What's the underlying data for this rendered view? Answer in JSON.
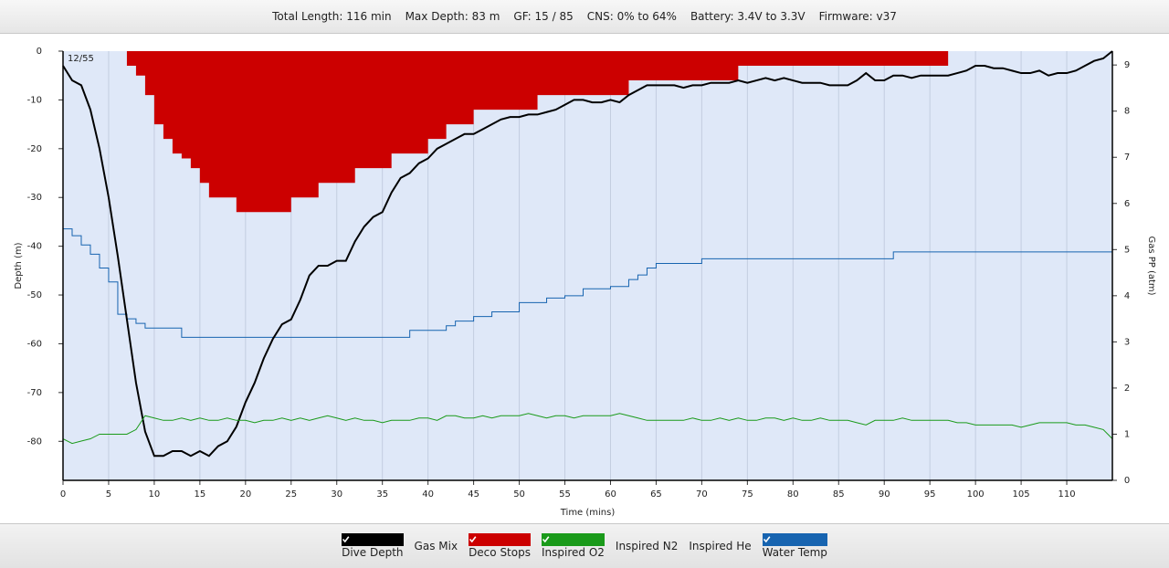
{
  "header": {
    "items": [
      "Total Length: 116 min",
      "Max Depth: 83 m",
      "GF: 15 / 85",
      "CNS: 0% to 64%",
      "Battery: 3.4V to 3.3V",
      "Firmware: v37"
    ]
  },
  "chart_data": {
    "type": "line",
    "annotation": "12/55",
    "x_label": "Time (mins)",
    "y_label": "Depth (m)",
    "y2_label": "Gas PP (atm)",
    "xlim": [
      0,
      115
    ],
    "ylim": [
      -88,
      0
    ],
    "y2lim": [
      0,
      9.3
    ],
    "xticks": [
      0,
      5,
      10,
      15,
      20,
      25,
      30,
      35,
      40,
      45,
      50,
      55,
      60,
      65,
      70,
      75,
      80,
      85,
      90,
      95,
      100,
      105,
      110
    ],
    "yticks": [
      0,
      -10,
      -20,
      -30,
      -40,
      -50,
      -60,
      -70,
      -80
    ],
    "y2ticks": [
      0,
      1,
      2,
      3,
      4,
      5,
      6,
      7,
      8,
      9
    ],
    "grid": "x",
    "x": [
      0,
      1,
      2,
      3,
      4,
      5,
      6,
      7,
      8,
      9,
      10,
      11,
      12,
      13,
      14,
      15,
      16,
      17,
      18,
      19,
      20,
      21,
      22,
      23,
      24,
      25,
      26,
      27,
      28,
      29,
      30,
      31,
      32,
      33,
      34,
      35,
      36,
      37,
      38,
      39,
      40,
      41,
      42,
      43,
      44,
      45,
      46,
      47,
      48,
      49,
      50,
      51,
      52,
      53,
      54,
      55,
      56,
      57,
      58,
      59,
      60,
      61,
      62,
      63,
      64,
      65,
      66,
      67,
      68,
      69,
      70,
      71,
      72,
      73,
      74,
      75,
      76,
      77,
      78,
      79,
      80,
      81,
      82,
      83,
      84,
      85,
      86,
      87,
      88,
      89,
      90,
      91,
      92,
      93,
      94,
      95,
      96,
      97,
      98,
      99,
      100,
      101,
      102,
      103,
      104,
      105,
      106,
      107,
      108,
      109,
      110,
      111,
      112,
      113,
      114,
      115
    ],
    "series": [
      {
        "name": "Dive Depth",
        "color": "#000000",
        "checked": true,
        "kind": "line",
        "axis": "y",
        "values": [
          -3,
          -6,
          -7,
          -12,
          -20,
          -30,
          -42,
          -55,
          -68,
          -78,
          -83,
          -83,
          -82,
          -82,
          -83,
          -82,
          -83,
          -81,
          -80,
          -77,
          -72,
          -68,
          -63,
          -59,
          -56,
          -55,
          -51,
          -46,
          -44,
          -44,
          -43,
          -43,
          -39,
          -36,
          -34,
          -33,
          -29,
          -26,
          -25,
          -23,
          -22,
          -20,
          -19,
          -18,
          -17,
          -17,
          -16,
          -15,
          -14,
          -13.5,
          -13.5,
          -13,
          -13,
          -12.5,
          -12,
          -11,
          -10,
          -10,
          -10.5,
          -10.5,
          -10,
          -10.5,
          -9,
          -8,
          -7,
          -7,
          -7,
          -7,
          -7.5,
          -7,
          -7,
          -6.5,
          -6.5,
          -6.5,
          -6,
          -6.5,
          -6,
          -5.5,
          -6,
          -5.5,
          -6,
          -6.5,
          -6.5,
          -6.5,
          -7,
          -7,
          -7,
          -6,
          -4.5,
          -6,
          -6,
          -5,
          -5,
          -5.5,
          -5,
          -5,
          -5,
          -5,
          -4.5,
          -4,
          -3,
          -3,
          -3.5,
          -3.5,
          -4,
          -4.5,
          -4.5,
          -4,
          -5,
          -4.5,
          -4.5,
          -4,
          -3,
          -2,
          -1.5,
          0
        ]
      },
      {
        "name": "Gas Mix",
        "color": "#9cc8ee",
        "checked": false
      },
      {
        "name": "Deco Stops",
        "color": "#cc0000",
        "checked": true,
        "kind": "ceiling",
        "axis": "y",
        "values": [
          null,
          null,
          null,
          null,
          null,
          null,
          null,
          -3,
          -5,
          -9,
          -15,
          -18,
          -21,
          -22,
          -24,
          -27,
          -30,
          -30,
          -30,
          -33,
          -33,
          -33,
          -33,
          -33,
          -33,
          -30,
          -30,
          -30,
          -27,
          -27,
          -27,
          -27,
          -24,
          -24,
          -24,
          -24,
          -21,
          -21,
          -21,
          -21,
          -18,
          -18,
          -15,
          -15,
          -15,
          -12,
          -12,
          -12,
          -12,
          -12,
          -12,
          -12,
          -9,
          -9,
          -9,
          -9,
          -9,
          -9,
          -9,
          -9,
          -9,
          -9,
          -6,
          -6,
          -6,
          -6,
          -6,
          -6,
          -6,
          -6,
          -6,
          -6,
          -6,
          -6,
          -3,
          -3,
          -3,
          -3,
          -3,
          -3,
          -3,
          -3,
          -3,
          -3,
          -3,
          -3,
          -3,
          -3,
          -3,
          -3,
          -3,
          -3,
          -3,
          -3,
          -3,
          -3,
          -3,
          null,
          null,
          null,
          null,
          null,
          null,
          null,
          null,
          null,
          null,
          null,
          null,
          null,
          null,
          null,
          null,
          null,
          null,
          null
        ]
      },
      {
        "name": "Inspired O2",
        "color": "#1a9a1a",
        "checked": true,
        "kind": "line",
        "axis": "y2",
        "values": [
          0.9,
          0.8,
          0.85,
          0.9,
          1.0,
          1.0,
          1.0,
          1.0,
          1.1,
          1.4,
          1.35,
          1.3,
          1.3,
          1.35,
          1.3,
          1.35,
          1.3,
          1.3,
          1.35,
          1.3,
          1.3,
          1.25,
          1.3,
          1.3,
          1.35,
          1.3,
          1.35,
          1.3,
          1.35,
          1.4,
          1.35,
          1.3,
          1.35,
          1.3,
          1.3,
          1.25,
          1.3,
          1.3,
          1.3,
          1.35,
          1.35,
          1.3,
          1.4,
          1.4,
          1.35,
          1.35,
          1.4,
          1.35,
          1.4,
          1.4,
          1.4,
          1.45,
          1.4,
          1.35,
          1.4,
          1.4,
          1.35,
          1.4,
          1.4,
          1.4,
          1.4,
          1.45,
          1.4,
          1.35,
          1.3,
          1.3,
          1.3,
          1.3,
          1.3,
          1.35,
          1.3,
          1.3,
          1.35,
          1.3,
          1.35,
          1.3,
          1.3,
          1.35,
          1.35,
          1.3,
          1.35,
          1.3,
          1.3,
          1.35,
          1.3,
          1.3,
          1.3,
          1.25,
          1.2,
          1.3,
          1.3,
          1.3,
          1.35,
          1.3,
          1.3,
          1.3,
          1.3,
          1.3,
          1.25,
          1.25,
          1.2,
          1.2,
          1.2,
          1.2,
          1.2,
          1.15,
          1.2,
          1.25,
          1.25,
          1.25,
          1.25,
          1.2,
          1.2,
          1.15,
          1.1,
          0.9
        ]
      },
      {
        "name": "Inspired N2",
        "color": "#9b7418",
        "checked": false
      },
      {
        "name": "Inspired He",
        "color": "#8a8a8a",
        "checked": false
      },
      {
        "name": "Water Temp",
        "color": "#1764b0",
        "checked": true,
        "kind": "step",
        "axis": "y2",
        "values": [
          5.45,
          5.3,
          5.1,
          4.9,
          4.6,
          4.3,
          3.6,
          3.5,
          3.4,
          3.3,
          3.3,
          3.3,
          3.3,
          3.1,
          3.1,
          3.1,
          3.1,
          3.1,
          3.1,
          3.1,
          3.1,
          3.1,
          3.1,
          3.1,
          3.1,
          3.1,
          3.1,
          3.1,
          3.1,
          3.1,
          3.1,
          3.1,
          3.1,
          3.1,
          3.1,
          3.1,
          3.1,
          3.1,
          3.25,
          3.25,
          3.25,
          3.25,
          3.35,
          3.45,
          3.45,
          3.55,
          3.55,
          3.65,
          3.65,
          3.65,
          3.85,
          3.85,
          3.85,
          3.95,
          3.95,
          4.0,
          4.0,
          4.15,
          4.15,
          4.15,
          4.2,
          4.2,
          4.35,
          4.45,
          4.6,
          4.7,
          4.7,
          4.7,
          4.7,
          4.7,
          4.8,
          4.8,
          4.8,
          4.8,
          4.8,
          4.8,
          4.8,
          4.8,
          4.8,
          4.8,
          4.8,
          4.8,
          4.8,
          4.8,
          4.8,
          4.8,
          4.8,
          4.8,
          4.8,
          4.8,
          4.8,
          4.95,
          4.95,
          4.95,
          4.95,
          4.95,
          4.95,
          4.95,
          4.95,
          4.95,
          4.95,
          4.95,
          4.95,
          4.95,
          4.95,
          4.95,
          4.95,
          4.95,
          4.95,
          4.95,
          4.95,
          4.95,
          4.95,
          4.95,
          4.95,
          4.95
        ]
      }
    ]
  }
}
